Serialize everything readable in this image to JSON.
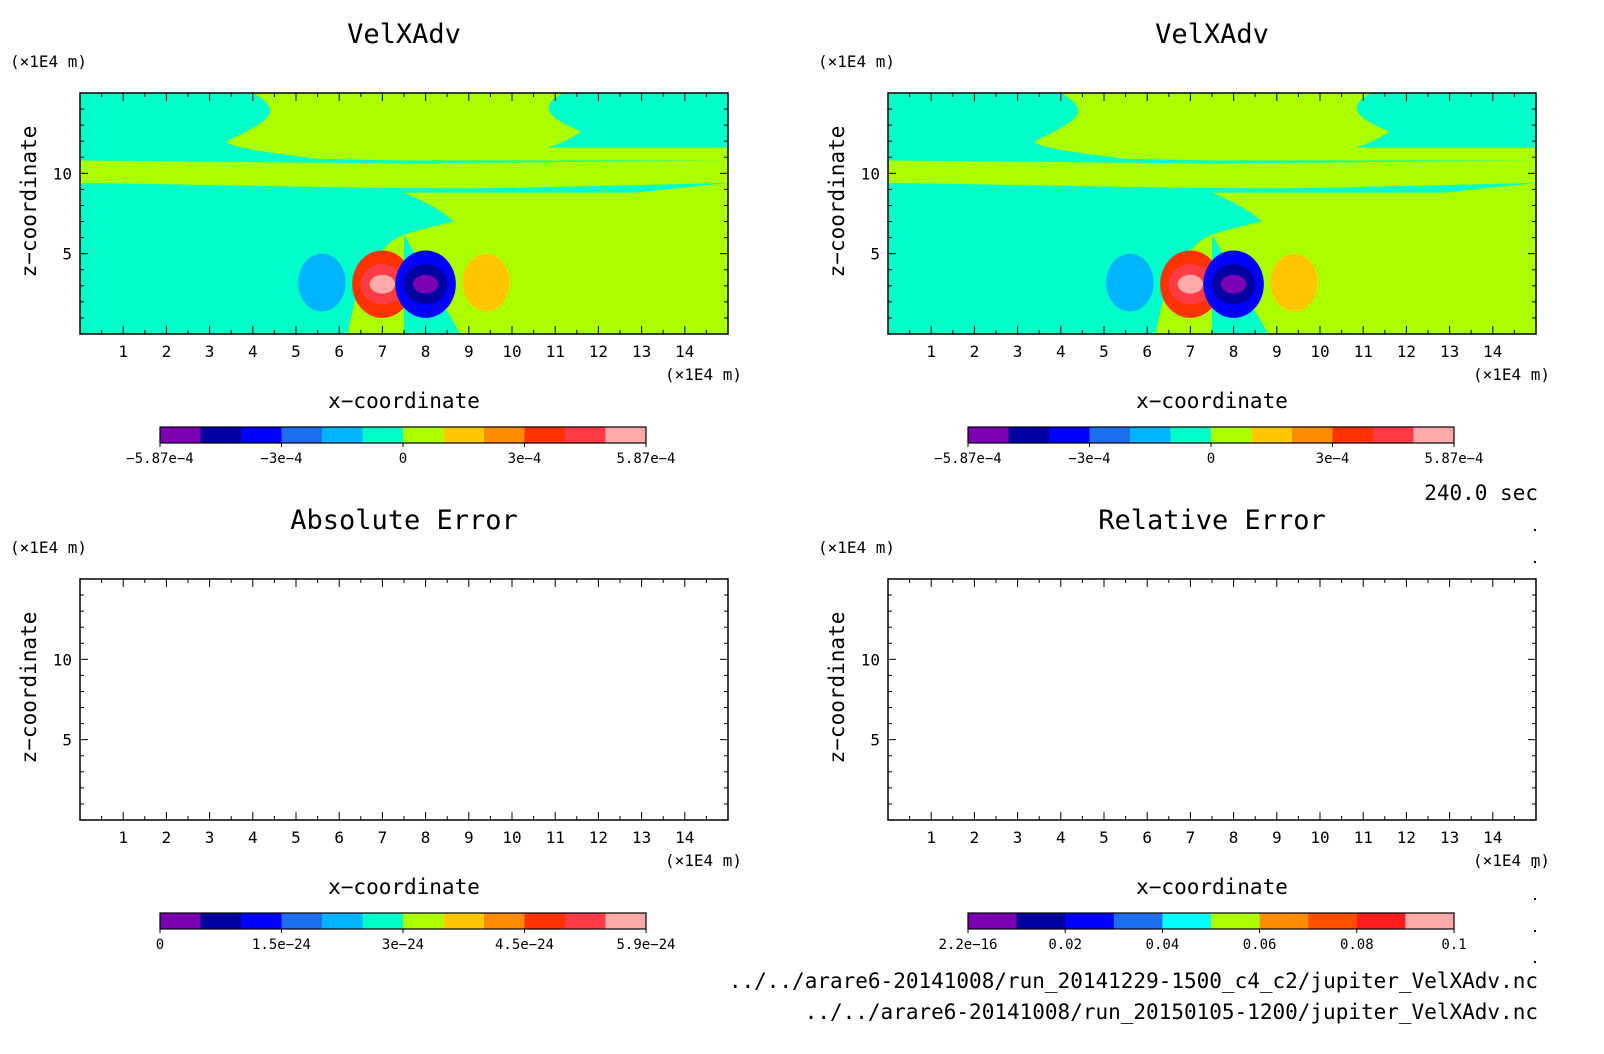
{
  "footer": {
    "time": "240.0 sec",
    "file1": "../../arare6-20141008/run_20141229-1500_c4_c2/jupiter_VelXAdv.nc",
    "file2": "../../arare6-20141008/run_20150105-1200/jupiter_VelXAdv.nc"
  },
  "chart_data": [
    {
      "type": "heatmap",
      "title": "VelXAdv",
      "xlabel": "x−coordinate",
      "ylabel": "z−coordinate",
      "x_unit": "(×1E4 m)",
      "y_unit": "(×1E4 m)",
      "xlim": [
        0,
        15
      ],
      "ylim": [
        0,
        15
      ],
      "x_ticks": [
        "1",
        "2",
        "3",
        "4",
        "5",
        "6",
        "7",
        "8",
        "9",
        "10",
        "11",
        "12",
        "13",
        "14"
      ],
      "y_ticks": [
        "5",
        "10"
      ],
      "colorbar": {
        "colors": [
          "#7b00b4",
          "#0000a0",
          "#0000ff",
          "#1e6ef0",
          "#00b4ff",
          "#00ffc8",
          "#aaff00",
          "#ffc800",
          "#ff8c00",
          "#ff3200",
          "#ff3c46",
          "#ffaaaa"
        ],
        "tick_labels": [
          "−5.87e−4",
          "−3e−4",
          "0",
          "3e−4",
          "5.87e−4"
        ]
      },
      "fields": {
        "background": "#00ffc8",
        "features": [
          {
            "kind": "band",
            "z_range": [
              9.4,
              10.8
            ],
            "color": "#aaff00"
          },
          {
            "kind": "right-region",
            "x_range": [
              7.5,
              15
            ],
            "color": "#aaff00"
          },
          {
            "kind": "upper-lobe",
            "x_range": [
              3.4,
              11.6
            ],
            "z_range": [
              12.0,
              15.0
            ],
            "color": "#aaff00"
          },
          {
            "kind": "blob",
            "x": 5.6,
            "z": 3.2,
            "color": "#00b4ff"
          },
          {
            "kind": "blob",
            "x": 7.0,
            "z": 3.1,
            "color": "#ff3200",
            "core_color": "#ffaaaa"
          },
          {
            "kind": "blob",
            "x": 8.0,
            "z": 3.1,
            "color": "#0000ff",
            "core_color": "#7b00b4"
          },
          {
            "kind": "blob",
            "x": 9.4,
            "z": 3.2,
            "color": "#ffc800"
          }
        ]
      }
    },
    {
      "type": "heatmap",
      "title": "VelXAdv",
      "xlabel": "x−coordinate",
      "ylabel": "z−coordinate",
      "x_unit": "(×1E4 m)",
      "y_unit": "(×1E4 m)",
      "xlim": [
        0,
        15
      ],
      "ylim": [
        0,
        15
      ],
      "x_ticks": [
        "1",
        "2",
        "3",
        "4",
        "5",
        "6",
        "7",
        "8",
        "9",
        "10",
        "11",
        "12",
        "13",
        "14"
      ],
      "y_ticks": [
        "5",
        "10"
      ],
      "colorbar": {
        "colors": [
          "#7b00b4",
          "#0000a0",
          "#0000ff",
          "#1e6ef0",
          "#00b4ff",
          "#00ffc8",
          "#aaff00",
          "#ffc800",
          "#ff8c00",
          "#ff3200",
          "#ff3c46",
          "#ffaaaa"
        ],
        "tick_labels": [
          "−5.87e−4",
          "−3e−4",
          "0",
          "3e−4",
          "5.87e−4"
        ]
      },
      "fields": {
        "background": "#00ffc8",
        "features": [
          {
            "kind": "band",
            "z_range": [
              9.4,
              10.8
            ],
            "color": "#aaff00"
          },
          {
            "kind": "right-region",
            "x_range": [
              7.5,
              15
            ],
            "color": "#aaff00"
          },
          {
            "kind": "upper-lobe",
            "x_range": [
              3.4,
              11.6
            ],
            "z_range": [
              12.0,
              15.0
            ],
            "color": "#aaff00"
          },
          {
            "kind": "blob",
            "x": 5.6,
            "z": 3.2,
            "color": "#00b4ff"
          },
          {
            "kind": "blob",
            "x": 7.0,
            "z": 3.1,
            "color": "#ff3200",
            "core_color": "#ffaaaa"
          },
          {
            "kind": "blob",
            "x": 8.0,
            "z": 3.1,
            "color": "#0000ff",
            "core_color": "#7b00b4"
          },
          {
            "kind": "blob",
            "x": 9.4,
            "z": 3.2,
            "color": "#ffc800"
          }
        ]
      }
    },
    {
      "type": "heatmap",
      "title": "Absolute Error",
      "xlabel": "x−coordinate",
      "ylabel": "z−coordinate",
      "x_unit": "(×1E4 m)",
      "y_unit": "(×1E4 m)",
      "xlim": [
        0,
        15
      ],
      "ylim": [
        0,
        15
      ],
      "x_ticks": [
        "1",
        "2",
        "3",
        "4",
        "5",
        "6",
        "7",
        "8",
        "9",
        "10",
        "11",
        "12",
        "13",
        "14"
      ],
      "y_ticks": [
        "5",
        "10"
      ],
      "colorbar": {
        "colors": [
          "#7b00b4",
          "#0000a0",
          "#0000ff",
          "#1e6ef0",
          "#00b4ff",
          "#00ffc8",
          "#aaff00",
          "#ffc800",
          "#ff8c00",
          "#ff3200",
          "#ff3c46",
          "#ffaaaa"
        ],
        "tick_labels": [
          "0",
          "1.5e−24",
          "3e−24",
          "4.5e−24",
          "5.9e−24"
        ]
      },
      "fields": {
        "background": "#ffffff",
        "features": []
      }
    },
    {
      "type": "heatmap",
      "title": "Relative Error",
      "xlabel": "x−coordinate",
      "ylabel": "z−coordinate",
      "x_unit": "(×1E4 m)",
      "y_unit": "(×1E4 m)",
      "xlim": [
        0,
        15
      ],
      "ylim": [
        0,
        15
      ],
      "x_ticks": [
        "1",
        "2",
        "3",
        "4",
        "5",
        "6",
        "7",
        "8",
        "9",
        "10",
        "11",
        "12",
        "13",
        "14"
      ],
      "y_ticks": [
        "5",
        "10"
      ],
      "colorbar": {
        "colors": [
          "#7b00b4",
          "#0000a0",
          "#0000ff",
          "#1e6ef0",
          "#00ffff",
          "#aaff00",
          "#ff8c00",
          "#ff5000",
          "#ff1e1e",
          "#ffaaaa"
        ],
        "tick_labels": [
          "2.2e−16",
          "0.02",
          "0.04",
          "0.06",
          "0.08",
          "0.1"
        ]
      },
      "fields": {
        "background": "#ffffff",
        "features": []
      }
    }
  ]
}
